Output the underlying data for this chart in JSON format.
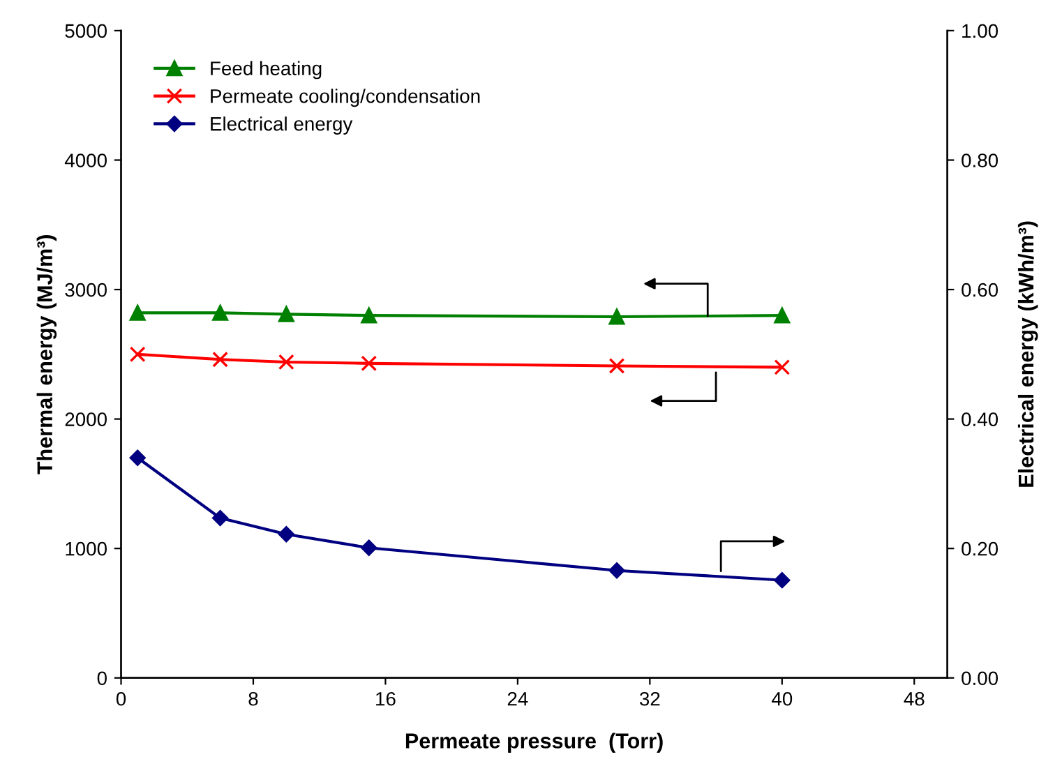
{
  "chart_data": {
    "type": "line",
    "xlabel": "Permeate pressure  (Torr)",
    "ylabel": "Thermal energy (MJ/m³)",
    "y2label": "Electrical energy (kWh/m³)",
    "x": [
      1,
      6,
      10,
      15,
      30,
      40
    ],
    "series": [
      {
        "name": "Feed heating",
        "color": "#008000",
        "marker": "triangle",
        "values": [
          2820,
          2820,
          2810,
          2800,
          2790,
          2800
        ]
      },
      {
        "name": "Permeate cooling/condensation",
        "color": "#ff0000",
        "marker": "cross",
        "values": [
          2500,
          2460,
          2440,
          2430,
          2410,
          2400
        ]
      },
      {
        "name": "Electrical energy",
        "color": "#000080",
        "marker": "diamond",
        "axis": "y2",
        "values": [
          0.34,
          0.247,
          0.222,
          0.201,
          0.166,
          0.151
        ]
      }
    ],
    "xlim": [
      0,
      50
    ],
    "xticks": [
      0,
      8,
      16,
      24,
      32,
      40,
      48
    ],
    "ylim": [
      0,
      5000
    ],
    "yticks": [
      0,
      1000,
      2000,
      3000,
      4000,
      5000
    ],
    "y2lim": [
      0,
      1
    ],
    "y2ticks": [
      {
        "value": 0,
        "label": "0.00"
      },
      {
        "value": 0.2,
        "label": "0.20"
      },
      {
        "value": 0.4,
        "label": "0.40"
      },
      {
        "value": 0.6,
        "label": "0.60"
      },
      {
        "value": 0.8,
        "label": "0.80"
      },
      {
        "value": 1,
        "label": "1.00"
      }
    ],
    "grid": false,
    "legend": "top left",
    "line_style": "solid"
  }
}
